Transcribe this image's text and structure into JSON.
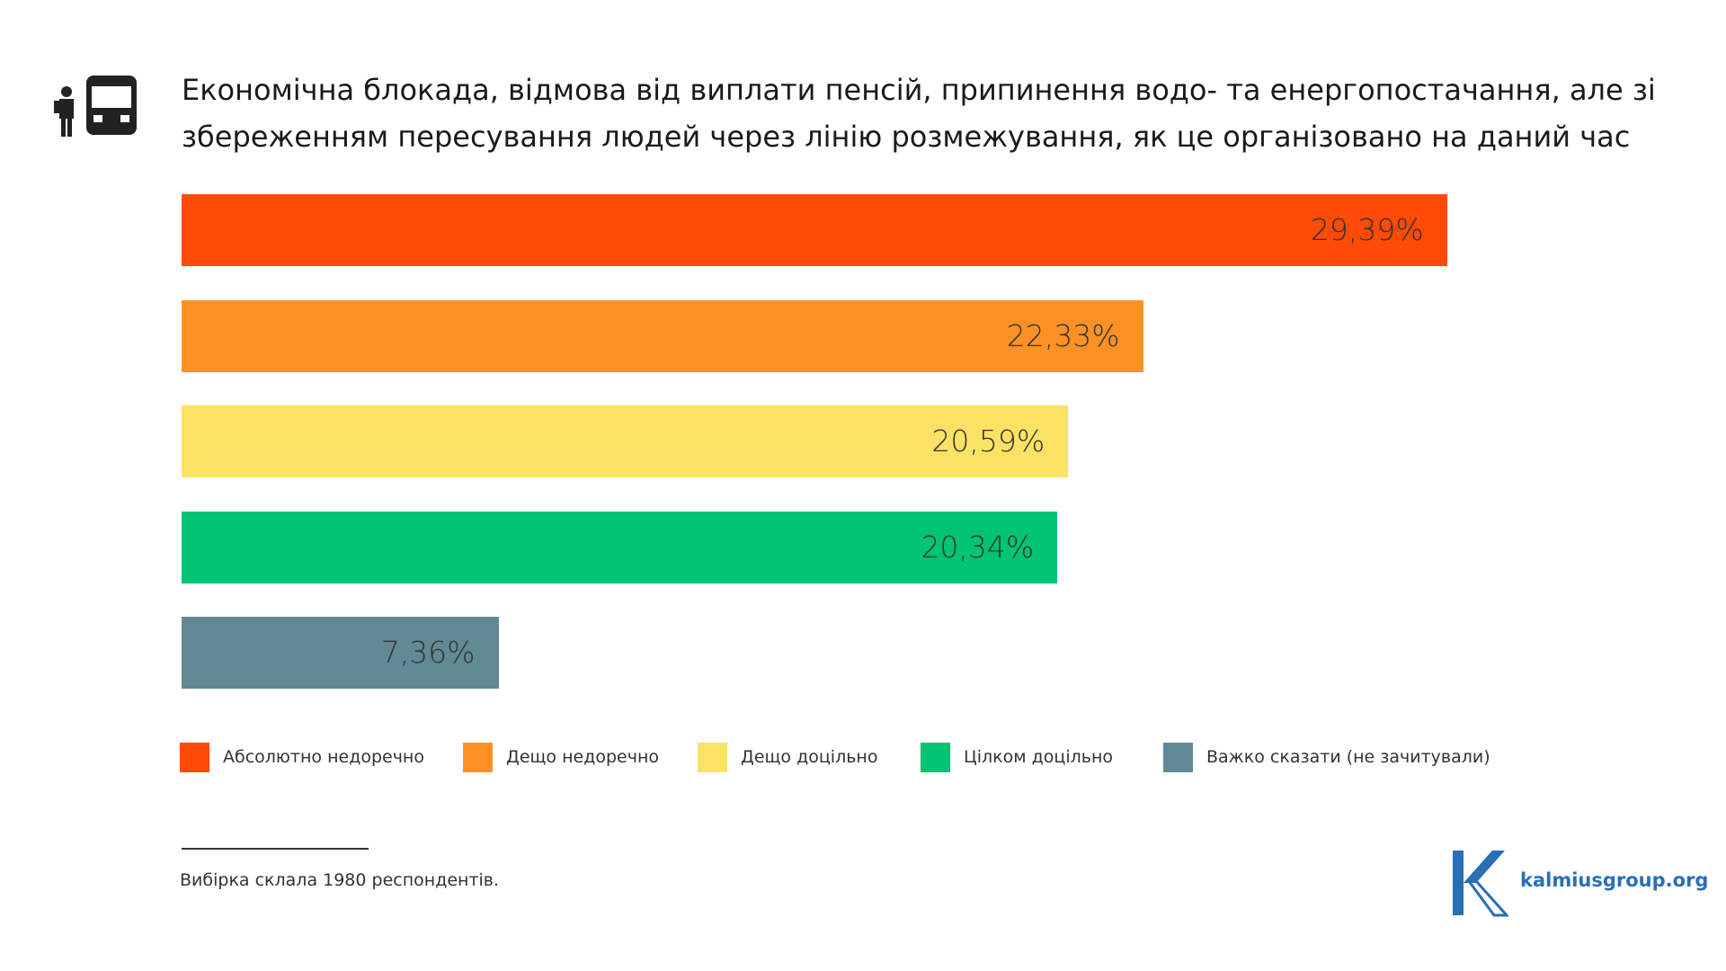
{
  "chart_data": {
    "type": "bar",
    "title": "Економічна блокада, відмова від виплати пенсій, припинення водо- та енергопостачання, але зі збереженням пересування людей через лінію розмежування, як це організовано на даний час",
    "series": [
      {
        "name": "Абсолютно недоречно",
        "color": "#ff4b06",
        "values": [
          29.39
        ],
        "value_labels": [
          "29,39%"
        ]
      },
      {
        "name": "Дещо недоречно",
        "color": "#fd9124",
        "values": [
          22.33
        ],
        "value_labels": [
          "22,33%"
        ]
      },
      {
        "name": "Дещо доцільно",
        "color": "#fce264",
        "values": [
          20.59
        ],
        "value_labels": [
          "20,59%"
        ]
      },
      {
        "name": "Цілком доцільно",
        "color": "#00c373",
        "values": [
          20.34
        ],
        "value_labels": [
          "20,34%"
        ]
      },
      {
        "name": "Важко сказати (не зачитували)",
        "color": "#628a95",
        "values": [
          7.36
        ],
        "value_labels": [
          "7,36%"
        ]
      }
    ],
    "footnote": "Вибірка склала 1980 респондентів.",
    "source": "kalmiusgroup.org"
  }
}
